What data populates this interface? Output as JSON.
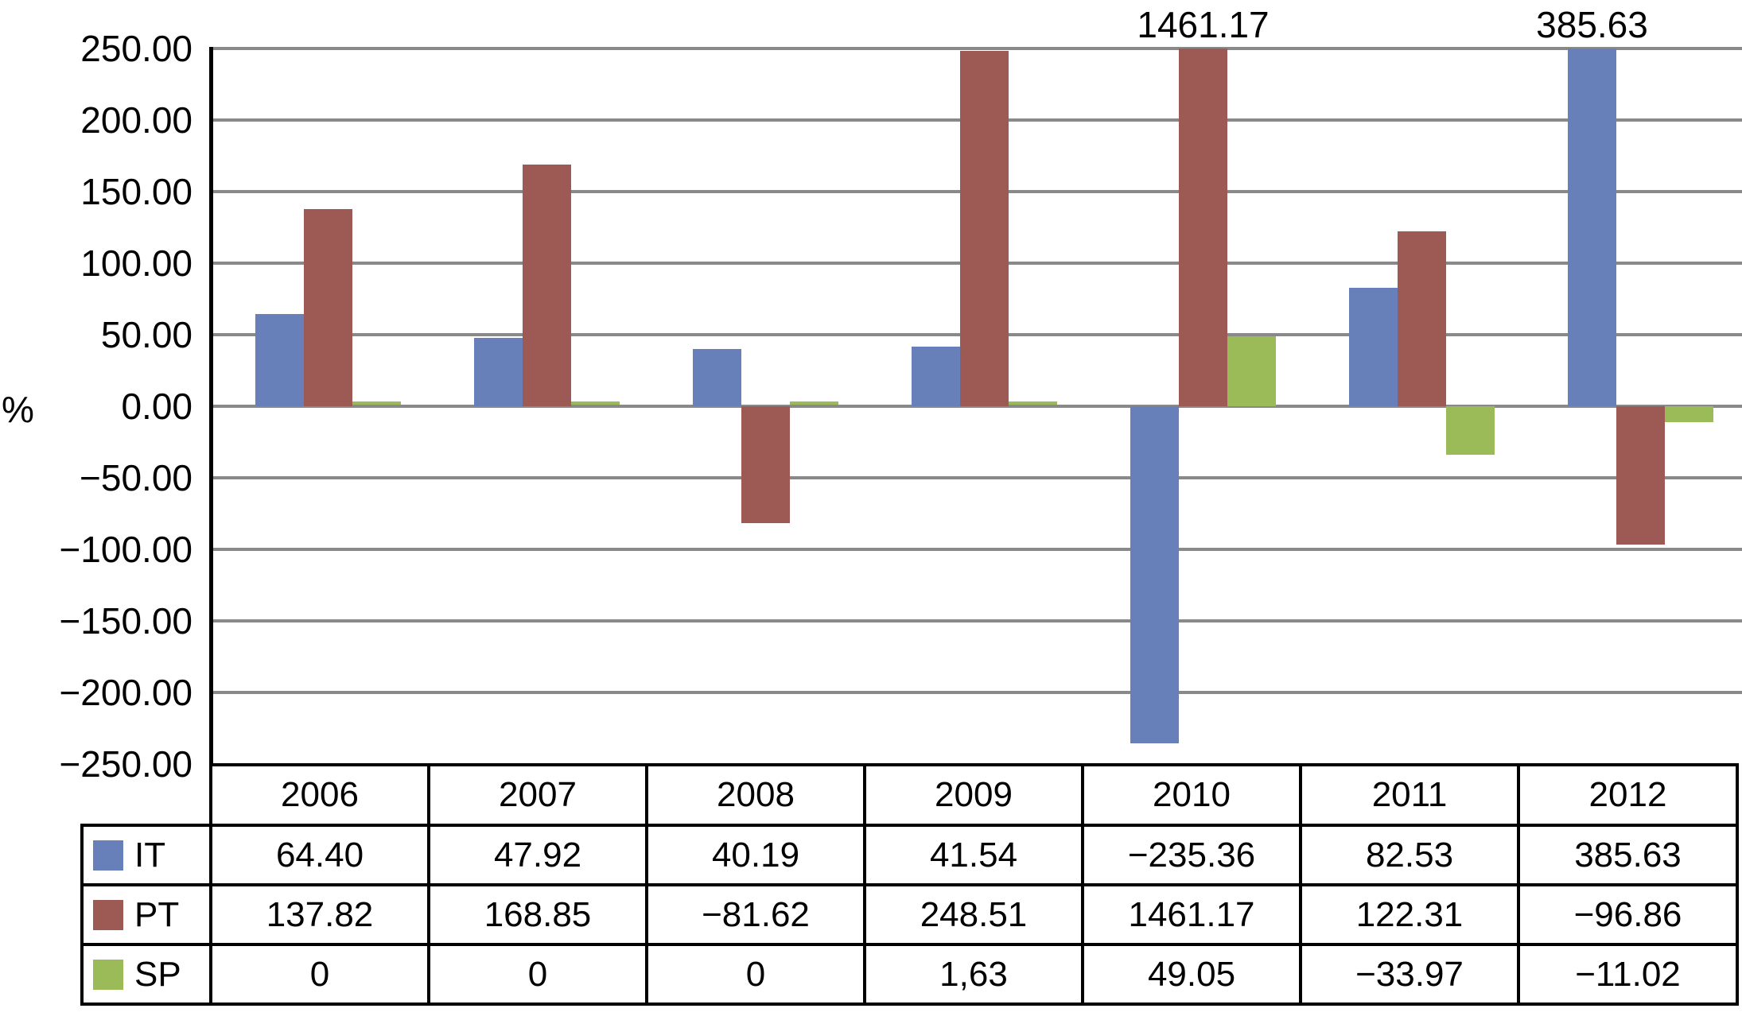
{
  "chart_data": {
    "type": "bar",
    "title": "",
    "y_axis_title": "%",
    "categories": [
      "2006",
      "2007",
      "2008",
      "2009",
      "2010",
      "2011",
      "2012"
    ],
    "series": [
      {
        "name": "IT",
        "color": "#6780B9",
        "values": [
          64.4,
          47.92,
          40.19,
          41.54,
          -235.36,
          82.53,
          385.63
        ]
      },
      {
        "name": "PT",
        "color": "#9D5954",
        "values": [
          137.82,
          168.85,
          -81.62,
          248.51,
          1461.17,
          122.31,
          -96.86
        ]
      },
      {
        "name": "SP",
        "color": "#9BBA58",
        "values": [
          0,
          0,
          0,
          1.63,
          49.05,
          -33.97,
          -11.02
        ]
      }
    ],
    "ylim": [
      -250,
      250
    ],
    "ytick_step": 50,
    "ytick_labels": [
      "250.00",
      "200.00",
      "150.00",
      "100.00",
      "50.00",
      "0.00",
      "−50.00",
      "−100.00",
      "−150.00",
      "−200.00",
      "−250.00"
    ],
    "grid": "horizontal-only",
    "legend_position": "table-left",
    "clip_labels": [
      {
        "series_index": 1,
        "category_index": 4,
        "text": "1461.17"
      },
      {
        "series_index": 0,
        "category_index": 6,
        "text": "385.63"
      }
    ]
  },
  "table": {
    "year_headers": [
      "2006",
      "2007",
      "2008",
      "2009",
      "2010",
      "2011",
      "2012"
    ],
    "rows": [
      {
        "name": "IT",
        "key_color": "#6780B9",
        "cells": [
          "64.40",
          "47.92",
          "40.19",
          "41.54",
          "−235.36",
          "82.53",
          "385.63"
        ]
      },
      {
        "name": "PT",
        "key_color": "#9D5954",
        "cells": [
          "137.82",
          "168.85",
          "−81.62",
          "248.51",
          "1461.17",
          "122.31",
          "−96.86"
        ]
      },
      {
        "name": "SP",
        "key_color": "#9BBA58",
        "cells": [
          "0",
          "0",
          "0",
          "1,63",
          "49.05",
          "−33.97",
          "−11.02"
        ]
      }
    ]
  },
  "colors": {
    "gridline": "#898989",
    "axis": "#000000",
    "background": "#ffffff"
  }
}
